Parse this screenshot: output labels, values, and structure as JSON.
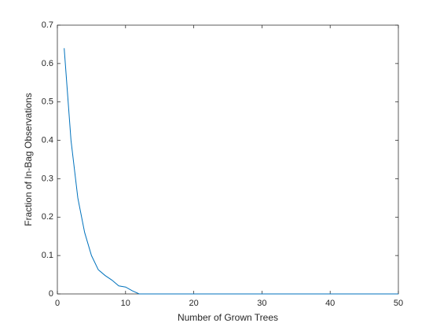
{
  "chart_data": {
    "type": "line",
    "xlabel": "Number of Grown Trees",
    "ylabel": "Fraction of In-Bag Observations",
    "x": [
      1,
      2,
      3,
      4,
      5,
      6,
      7,
      8,
      9,
      10,
      11,
      12,
      13,
      14,
      15,
      16,
      17,
      18,
      19,
      20,
      21,
      22,
      23,
      24,
      25,
      26,
      27,
      28,
      29,
      30,
      31,
      32,
      33,
      34,
      35,
      36,
      37,
      38,
      39,
      40,
      41,
      42,
      43,
      44,
      45,
      46,
      47,
      48,
      49,
      50
    ],
    "series": [
      {
        "color": "#0072bd",
        "values": [
          0.64,
          0.4,
          0.25,
          0.16,
          0.1,
          0.063,
          0.048,
          0.036,
          0.021,
          0.018,
          0.008,
          0,
          0,
          0,
          0,
          0,
          0,
          0,
          0,
          0,
          0,
          0,
          0,
          0,
          0,
          0,
          0,
          0,
          0,
          0,
          0,
          0,
          0,
          0,
          0,
          0,
          0,
          0,
          0,
          0,
          0,
          0,
          0,
          0,
          0,
          0,
          0,
          0,
          0,
          0
        ]
      }
    ],
    "xlim": [
      0,
      50
    ],
    "xticks": [
      0,
      10,
      20,
      30,
      40,
      50
    ],
    "ylim": [
      0,
      0.7
    ],
    "yticks": [
      0,
      0.1,
      0.2,
      0.3,
      0.4,
      0.5,
      0.6,
      0.7
    ]
  }
}
